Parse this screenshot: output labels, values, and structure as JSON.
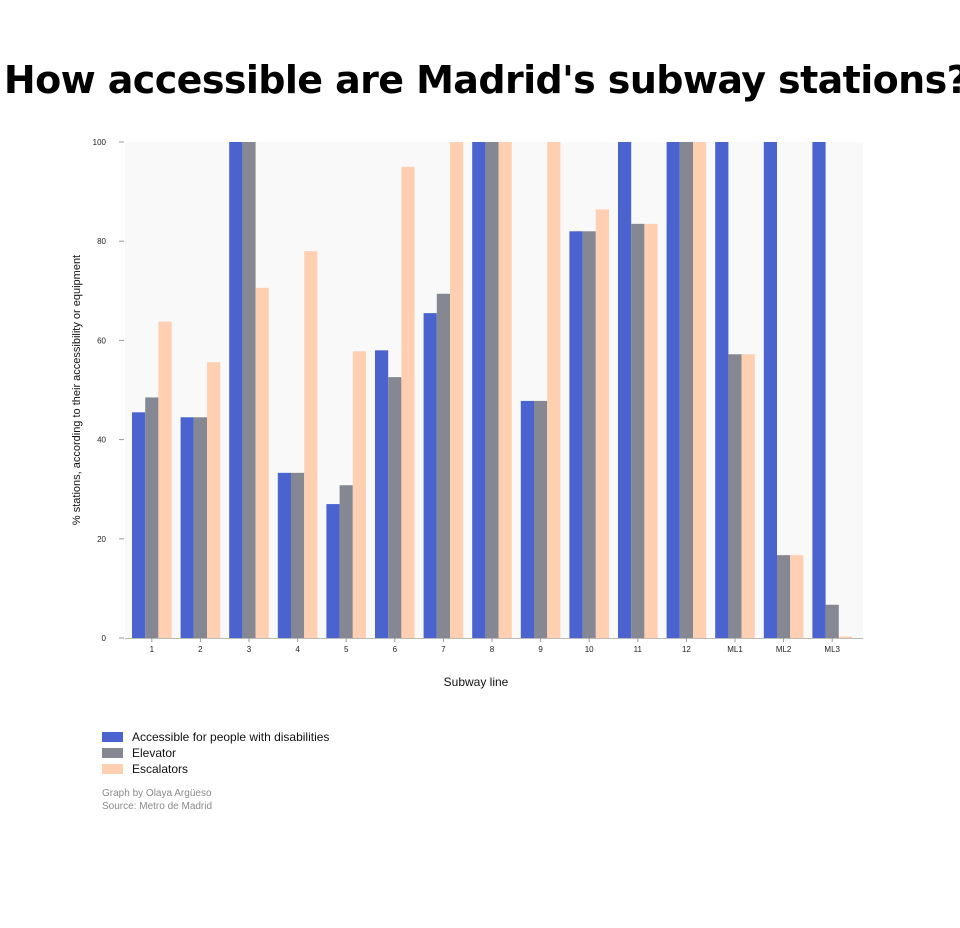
{
  "title": "How accessible are Madrid's subway stations?",
  "chart_data": {
    "type": "bar",
    "title": "How accessible are Madrid's subway stations?",
    "xlabel": "Subway line",
    "ylabel": "% stations, according to their accessibility or equipment",
    "categories": [
      "1",
      "2",
      "3",
      "4",
      "5",
      "6",
      "7",
      "8",
      "9",
      "10",
      "11",
      "12",
      "ML1",
      "ML2",
      "ML3"
    ],
    "series": [
      {
        "name": "Accessible for people with disabilities",
        "color": "#4a63cf",
        "values": [
          45.5,
          44.5,
          100,
          33.3,
          27,
          58,
          65.5,
          100,
          47.8,
          82,
          100,
          100,
          100,
          100,
          100
        ]
      },
      {
        "name": "Elevator",
        "color": "#858893",
        "values": [
          48.5,
          44.5,
          100,
          33.3,
          30.8,
          52.6,
          69.4,
          100,
          47.8,
          82,
          83.5,
          100,
          57.2,
          16.7,
          6.7
        ]
      },
      {
        "name": "Escalators",
        "color": "#fecfb0",
        "values": [
          63.8,
          55.6,
          70.6,
          78,
          57.8,
          95,
          100,
          100,
          100,
          86.4,
          83.5,
          100,
          57.2,
          16.7,
          0.3
        ]
      }
    ],
    "ylim": [
      0,
      100
    ],
    "yticks": [
      0,
      20,
      40,
      60,
      80,
      100
    ],
    "grid": false,
    "legend_position": "bottom-left"
  },
  "credits": {
    "line1": "Graph by Olaya Argüeso",
    "line2": "Source: Metro de Madrid"
  }
}
